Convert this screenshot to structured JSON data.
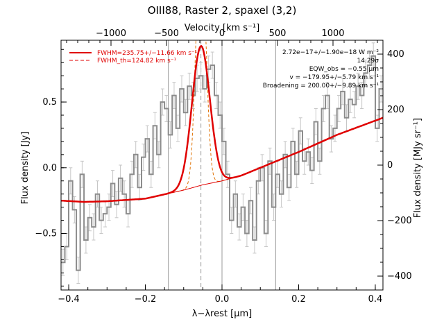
{
  "chart_data": {
    "type": "line",
    "title": "OIII88, Raster 2, spaxel (3,2)",
    "xlabel": "λ−λrest [μm]",
    "ylabel": "Flux density [Jy]",
    "y2label": "Flux density [MJy sr⁻¹]",
    "x2label": "Velocity [km s⁻¹]",
    "xlim": [
      -0.42,
      0.42
    ],
    "ylim": [
      -0.93,
      0.97
    ],
    "y2lim": [
      -450,
      450
    ],
    "x2lim": [
      -1450,
      1450
    ],
    "xticks": [
      -0.4,
      -0.2,
      0.0,
      0.2,
      0.4
    ],
    "xtick_labels": [
      "−0.4",
      "−0.2",
      "0.0",
      "0.2",
      "0.4"
    ],
    "yticks": [
      -0.5,
      0.0,
      0.5
    ],
    "ytick_labels": [
      "−0.5",
      "0.0",
      "0.5"
    ],
    "y2ticks": [
      -400,
      -200,
      0,
      200,
      400
    ],
    "y2tick_labels": [
      "−400",
      "−200",
      "0",
      "200",
      "400"
    ],
    "x2ticks": [
      -1000,
      -500,
      0,
      500,
      1000
    ],
    "x2tick_labels": [
      "−1000",
      "−500",
      "0",
      "500",
      "1000"
    ],
    "vlines_solid": [
      -0.14,
      0.0,
      0.14
    ],
    "vline_dashed": -0.055,
    "legend": [
      {
        "label": "FWHM=235.75+/−11.66 km s⁻¹",
        "style": "solid",
        "color": "#e00000"
      },
      {
        "label": "FWHM_th=124.82 km s⁻¹",
        "style": "dashed",
        "color": "#e00000"
      }
    ],
    "annotations": [
      "2.72e−17+/−1.90e−18 W m⁻²",
      "14.29σ",
      "EQW_obs = −0.55 μm",
      "v = −179.95+/−5.79 km s⁻¹",
      "Broadening = 200.00+/−9.89 km s⁻¹"
    ],
    "data_color": "#8c8c8c",
    "fit_color": "#e00000",
    "series": [
      {
        "name": "data",
        "x": [
          -0.415,
          -0.405,
          -0.395,
          -0.385,
          -0.375,
          -0.365,
          -0.355,
          -0.345,
          -0.335,
          -0.325,
          -0.315,
          -0.305,
          -0.295,
          -0.285,
          -0.275,
          -0.265,
          -0.255,
          -0.245,
          -0.235,
          -0.225,
          -0.215,
          -0.205,
          -0.195,
          -0.185,
          -0.175,
          -0.165,
          -0.155,
          -0.145,
          -0.135,
          -0.125,
          -0.115,
          -0.105,
          -0.095,
          -0.085,
          -0.075,
          -0.065,
          -0.055,
          -0.045,
          -0.035,
          -0.025,
          -0.015,
          -0.005,
          0.005,
          0.015,
          0.025,
          0.035,
          0.045,
          0.055,
          0.065,
          0.075,
          0.085,
          0.095,
          0.105,
          0.115,
          0.125,
          0.135,
          0.145,
          0.155,
          0.165,
          0.175,
          0.185,
          0.195,
          0.205,
          0.215,
          0.225,
          0.235,
          0.245,
          0.255,
          0.265,
          0.275,
          0.285,
          0.295,
          0.305,
          0.315,
          0.325,
          0.335,
          0.345,
          0.355,
          0.365,
          0.375,
          0.385,
          0.395,
          0.405,
          0.415
        ],
        "y": [
          -0.72,
          -0.6,
          -0.1,
          -0.32,
          -0.78,
          -0.05,
          -0.55,
          -0.38,
          -0.45,
          -0.2,
          -0.4,
          -0.35,
          -0.3,
          -0.12,
          -0.28,
          -0.08,
          -0.2,
          -0.35,
          -0.05,
          0.1,
          -0.15,
          0.08,
          0.22,
          -0.05,
          0.32,
          0.1,
          0.5,
          0.45,
          0.25,
          0.55,
          0.3,
          0.6,
          0.42,
          0.62,
          0.55,
          0.68,
          0.7,
          0.6,
          0.75,
          0.78,
          0.55,
          0.4,
          0.2,
          -0.05,
          -0.4,
          -0.2,
          -0.45,
          -0.3,
          -0.5,
          -0.25,
          -0.55,
          -0.1,
          0.0,
          -0.5,
          0.05,
          -0.3,
          -0.05,
          -0.2,
          0.1,
          -0.15,
          0.2,
          -0.05,
          0.28,
          0.05,
          0.12,
          -0.02,
          0.35,
          0.05,
          0.45,
          0.55,
          0.22,
          0.3,
          0.45,
          0.58,
          0.38,
          0.52,
          0.48,
          0.62,
          0.55,
          0.72,
          0.78,
          0.85,
          0.3,
          0.6
        ],
        "err": 0.1
      },
      {
        "name": "fit",
        "amplitude": 1.06,
        "center": -0.055,
        "fwhm": 0.055,
        "baseline_x": [
          -0.42,
          -0.36,
          -0.3,
          -0.2,
          -0.1,
          -0.05,
          0.0,
          0.05,
          0.1,
          0.2,
          0.3,
          0.42
        ],
        "baseline_y": [
          -0.25,
          -0.26,
          -0.255,
          -0.235,
          -0.17,
          -0.13,
          -0.1,
          -0.06,
          0.0,
          0.12,
          0.25,
          0.38
        ]
      },
      {
        "name": "thermal",
        "center": -0.055,
        "fwhm": 0.029
      }
    ]
  }
}
